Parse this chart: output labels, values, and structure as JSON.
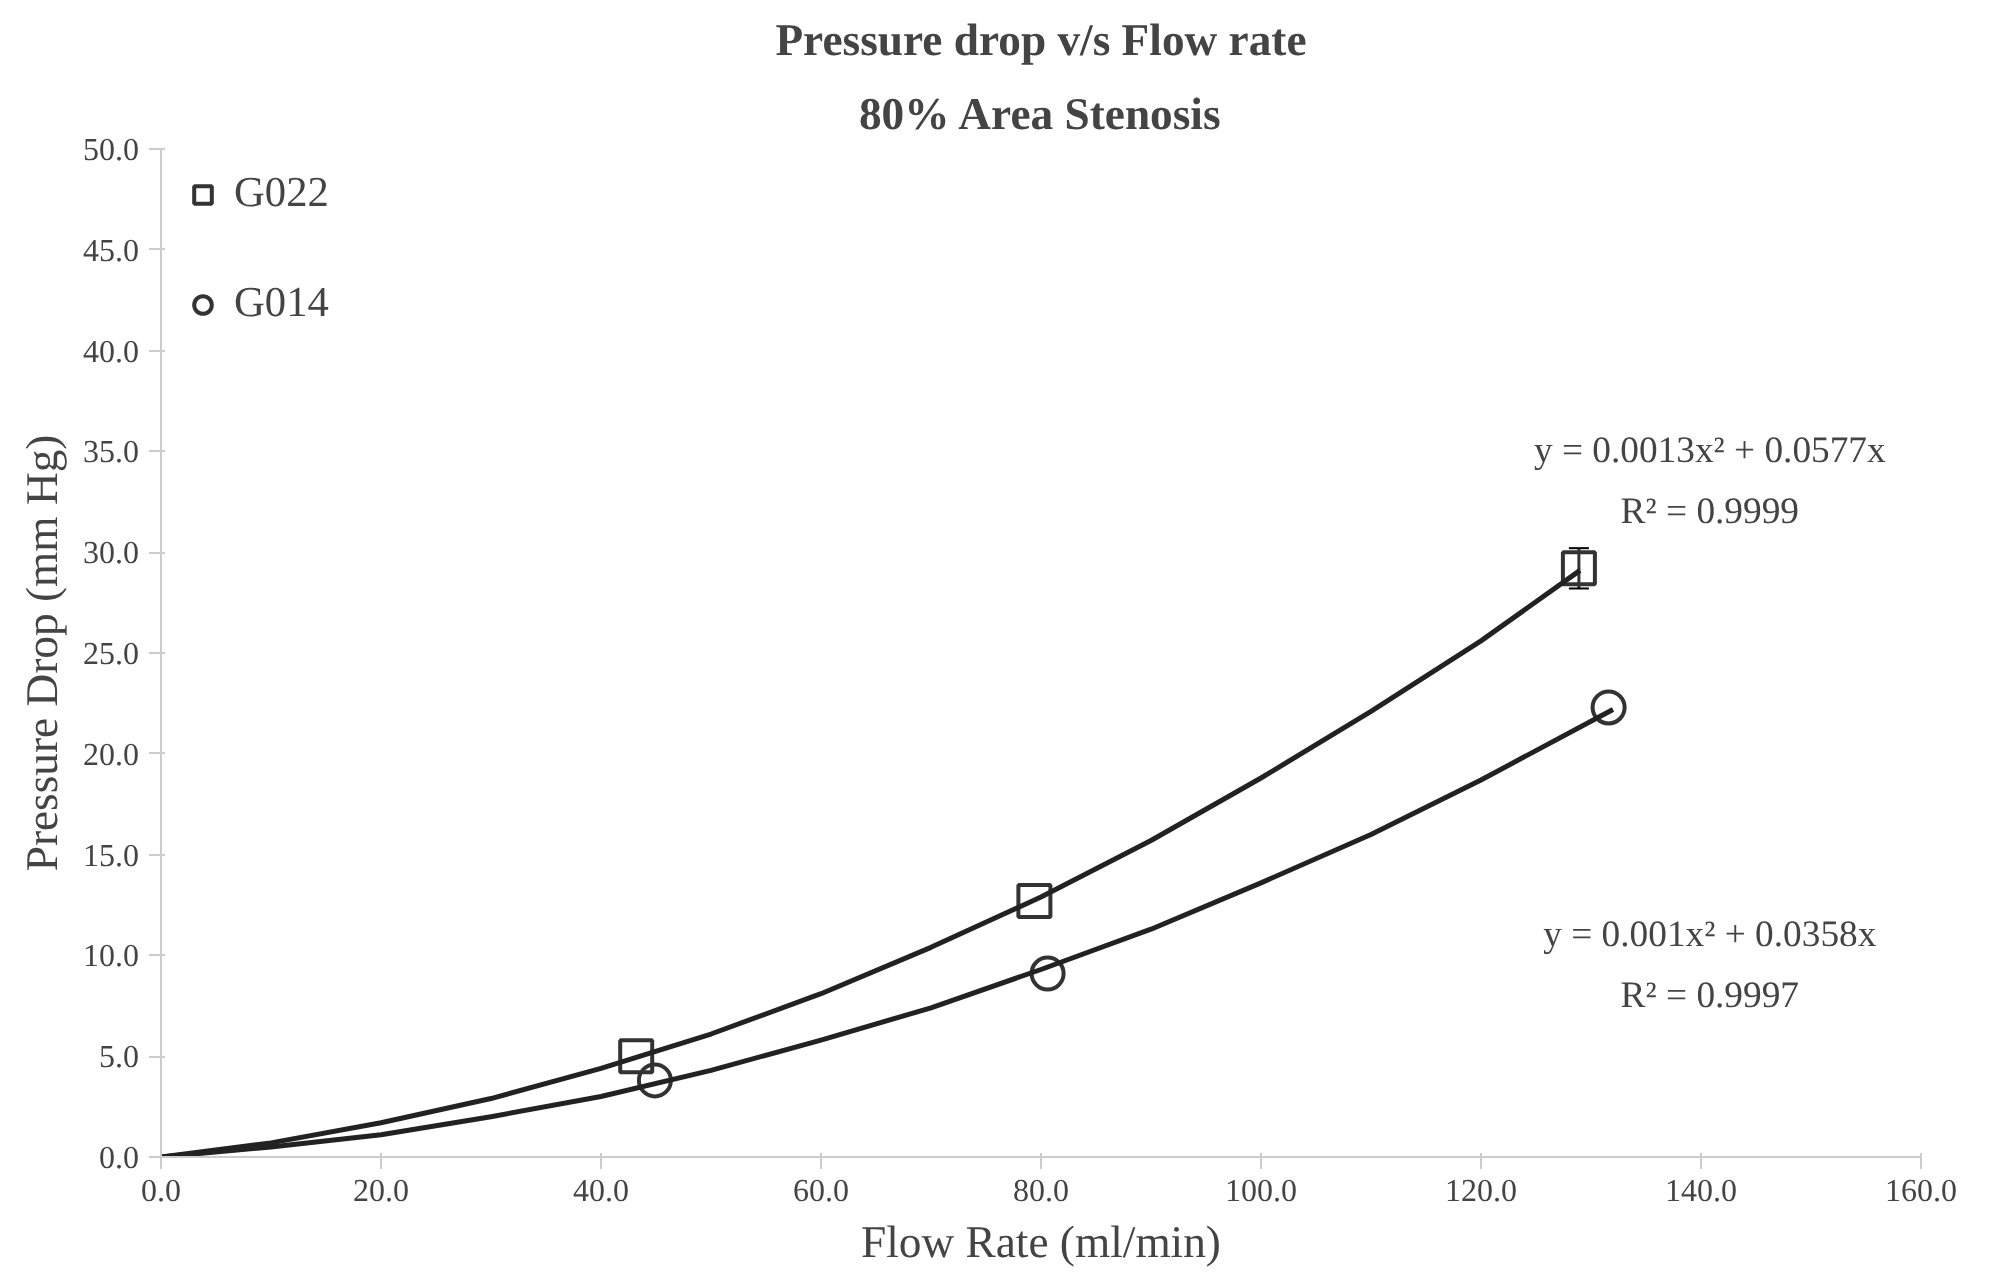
{
  "chart_data": {
    "type": "scatter",
    "title": "Pressure drop v/s Flow rate",
    "subtitle": "80% Area Stenosis",
    "xlabel": "Flow Rate (ml/min)",
    "ylabel": "Pressure Drop (mm Hg)",
    "xlim": [
      0,
      160
    ],
    "ylim": [
      0,
      50
    ],
    "xticks": [
      {
        "value": 0,
        "label": "0.0"
      },
      {
        "value": 20,
        "label": "20.0"
      },
      {
        "value": 40,
        "label": "40.0"
      },
      {
        "value": 60,
        "label": "60.0"
      },
      {
        "value": 80,
        "label": "80.0"
      },
      {
        "value": 100,
        "label": "100.0"
      },
      {
        "value": 120,
        "label": "120.0"
      },
      {
        "value": 140,
        "label": "140.0"
      },
      {
        "value": 160,
        "label": "160.0"
      }
    ],
    "yticks": [
      {
        "value": 0,
        "label": "0.0"
      },
      {
        "value": 5,
        "label": "5.0"
      },
      {
        "value": 10,
        "label": "10.0"
      },
      {
        "value": 15,
        "label": "15.0"
      },
      {
        "value": 20,
        "label": "20.0"
      },
      {
        "value": 25,
        "label": "25.0"
      },
      {
        "value": 30,
        "label": "30.0"
      },
      {
        "value": 35,
        "label": "35.0"
      },
      {
        "value": 40,
        "label": "40.0"
      },
      {
        "value": 45,
        "label": "45.0"
      },
      {
        "value": 50,
        "label": "50.0"
      }
    ],
    "grid": false,
    "legend": "top left",
    "series": [
      {
        "name": "G022",
        "marker": "square",
        "color": "#333333",
        "x": [
          43.2,
          79.4,
          128.9
        ],
        "values": [
          5.0,
          12.7,
          29.2
        ],
        "errors": [
          null,
          null,
          1.0
        ]
      },
      {
        "name": "G014",
        "marker": "circle",
        "color": "#333333",
        "x": [
          44.9,
          80.6,
          131.6
        ],
        "values": [
          3.8,
          9.1,
          22.3
        ]
      },
      {
        "type": "line",
        "color": "#222222",
        "x": [
          0,
          10,
          20,
          30,
          40,
          50,
          60,
          70,
          80,
          90,
          100,
          110,
          120,
          129
        ],
        "values": [
          0,
          0.7,
          1.7,
          2.9,
          4.4,
          6.1,
          8.1,
          10.4,
          12.9,
          15.7,
          18.8,
          22.1,
          25.6,
          29.1
        ]
      },
      {
        "type": "line",
        "color": "#222222",
        "x": [
          0,
          10,
          20,
          30,
          40,
          50,
          60,
          70,
          80,
          90,
          100,
          110,
          120,
          132
        ],
        "values": [
          0,
          0.5,
          1.1,
          2.0,
          3.0,
          4.3,
          5.8,
          7.4,
          9.3,
          11.3,
          13.6,
          16.0,
          18.7,
          22.2
        ]
      }
    ],
    "annotations": [
      "y = 0.0013x² + 0.0577x",
      "R² = 0.9999",
      "y = 0.001x² + 0.0358x",
      "R² = 0.9997"
    ]
  }
}
